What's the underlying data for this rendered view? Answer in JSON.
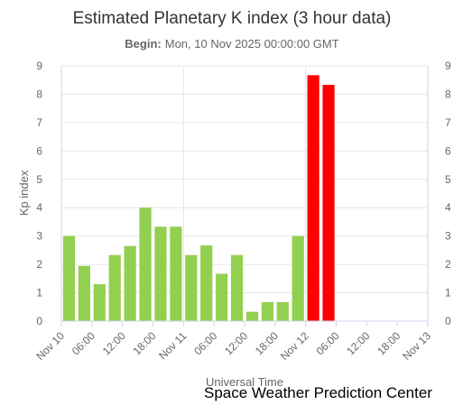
{
  "chart_data": {
    "type": "bar",
    "title": "Estimated Planetary K index (3 hour data)",
    "subtitle_label": "Begin:",
    "subtitle_value": "Mon, 10 Nov 2025 00:00:00 GMT",
    "xlabel": "Universal Time",
    "ylabel": "Kp index",
    "ylim": [
      0,
      9
    ],
    "y_ticks": [
      "0",
      "1",
      "2",
      "3",
      "4",
      "5",
      "6",
      "7",
      "8",
      "9"
    ],
    "x_ticks": [
      "Nov 10",
      "06:00",
      "12:00",
      "18:00",
      "Nov 11",
      "06:00",
      "12:00",
      "18:00",
      "Nov 12",
      "06:00",
      "12:00",
      "18:00",
      "Nov 13"
    ],
    "x_range_hours": [
      0,
      72
    ],
    "bar_interval_hours": 3,
    "grid": true,
    "colors": {
      "normal": "#92d050",
      "storm": "#ff0000"
    },
    "series": [
      {
        "values": [
          3.0,
          1.95,
          1.3,
          2.33,
          2.65,
          4.0,
          3.33,
          3.33,
          2.33,
          2.67,
          1.67,
          2.33,
          0.33,
          0.67,
          0.67,
          3.0,
          8.67,
          8.33
        ],
        "colors": [
          "normal",
          "normal",
          "normal",
          "normal",
          "normal",
          "normal",
          "normal",
          "normal",
          "normal",
          "normal",
          "normal",
          "normal",
          "normal",
          "normal",
          "normal",
          "normal",
          "storm",
          "storm"
        ]
      }
    ]
  },
  "credit": "Space Weather Prediction Center"
}
